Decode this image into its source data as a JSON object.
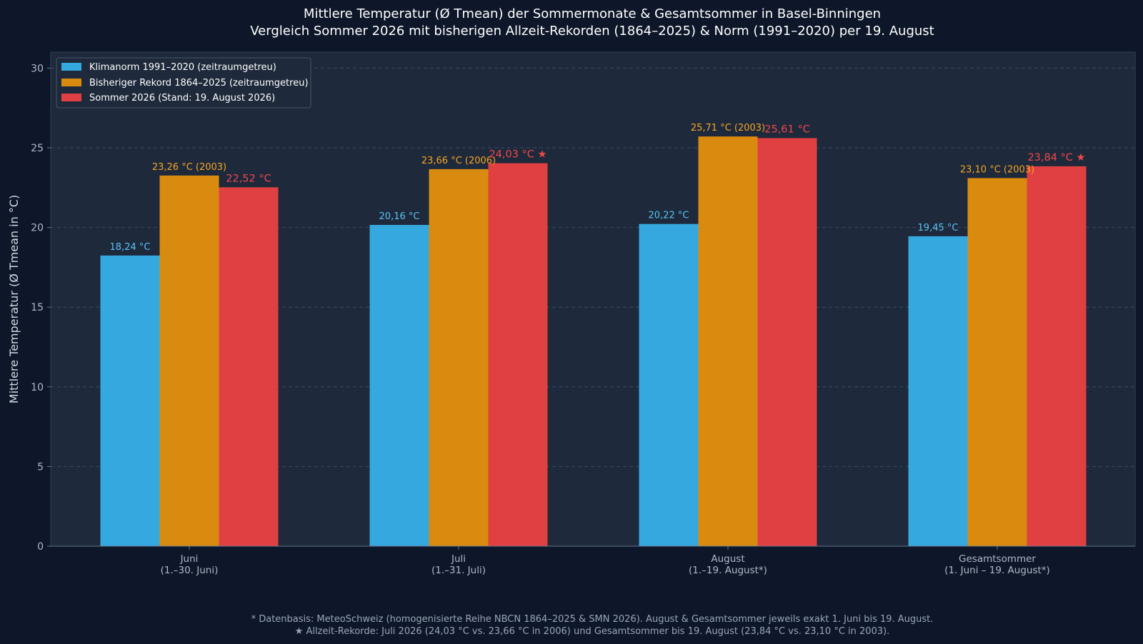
{
  "colors": {
    "background": "#0d1729",
    "plot_background": "#1e293b",
    "norm": "#36a8e0",
    "record": "#d98b10",
    "summer2026": "#e04041",
    "norm_label": "#5bc3f5",
    "record_label": "#f5a623",
    "summer_label": "#f0484a",
    "grid": "#3b4a63"
  },
  "chart_data": {
    "type": "bar",
    "title": "Mittlere Temperatur (Ø Tmean) der Sommermonate & Gesamtsommer in Basel-Binningen",
    "subtitle": "Vergleich Sommer 2026 mit bisherigen Allzeit-Rekorden (1864–2025) & Norm (1991–2020) per 19. August",
    "xlabel": "",
    "ylabel": "Mittlere Temperatur (Ø Tmean in °C)",
    "ylim": [
      0,
      31
    ],
    "yticks": [
      "0",
      "5",
      "10",
      "15",
      "20",
      "25",
      "30"
    ],
    "ytick_values": [
      0,
      5,
      10,
      15,
      20,
      25,
      30
    ],
    "grid": true,
    "legend_position": "top-left",
    "categories": [
      {
        "line1": "Juni",
        "line2": "(1.–30. Juni)"
      },
      {
        "line1": "Juli",
        "line2": "(1.–31. Juli)"
      },
      {
        "line1": "August",
        "line2": "(1.–19. August*)"
      },
      {
        "line1": "Gesamtsommer",
        "line2": "(1. Juni – 19. August*)"
      }
    ],
    "series": [
      {
        "name": "Klimanorm 1991–2020 (zeitraumgetreu)",
        "values": [
          18.24,
          20.16,
          20.22,
          19.45
        ],
        "labels": [
          "18,24 °C",
          "20,16 °C",
          "20,22 °C",
          "19,45 °C"
        ]
      },
      {
        "name": "Bisheriger Rekord 1864–2025 (zeitraumgetreu)",
        "values": [
          23.26,
          23.66,
          25.71,
          23.1
        ],
        "labels": [
          "23,26 °C (2003)",
          "23,66 °C (2006)",
          "25,71 °C (2003)",
          "23,10 °C (2003)"
        ]
      },
      {
        "name": "Sommer 2026 (Stand: 19. August 2026)",
        "values": [
          22.52,
          24.03,
          25.61,
          23.84
        ],
        "labels": [
          "22,52 °C",
          "24,03 °C ★",
          "25,61 °C",
          "23,84 °C ★"
        ]
      }
    ]
  },
  "footnotes": [
    "* Datenbasis: MeteoSchweiz (homogenisierte Reihe NBCN 1864–2025 & SMN 2026). August & Gesamtsommer jeweils exakt 1. Juni bis 19. August.",
    "★ Allzeit-Rekorde: Juli 2026 (24,03 °C vs. 23,66 °C in 2006) und Gesamtsommer bis 19. August (23,84 °C vs. 23,10 °C in 2003)."
  ]
}
